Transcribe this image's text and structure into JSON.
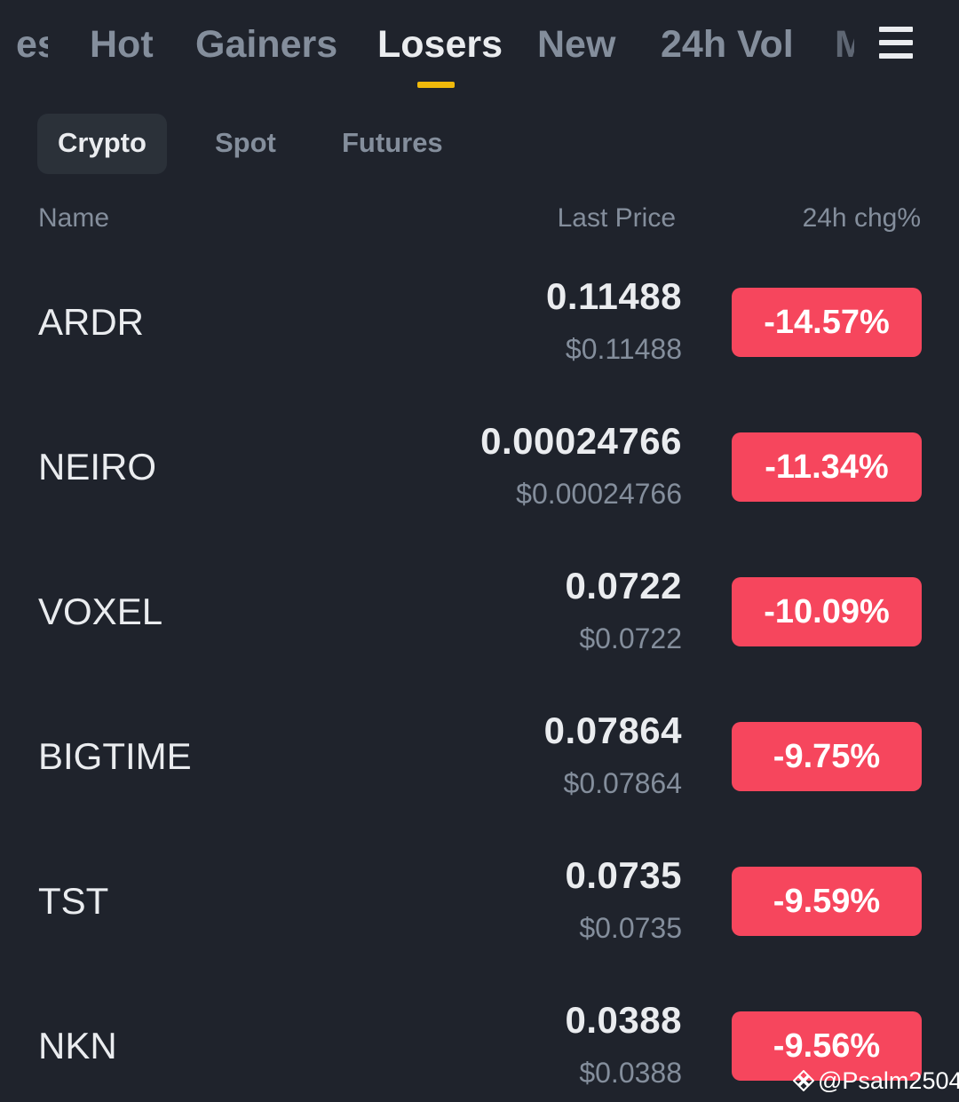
{
  "top_tabs": {
    "items": [
      {
        "label": "es"
      },
      {
        "label": "Hot"
      },
      {
        "label": "Gainers"
      },
      {
        "label": "Losers"
      },
      {
        "label": "New"
      },
      {
        "label": "24h Vol"
      },
      {
        "label": "M"
      }
    ],
    "active": "Losers"
  },
  "sub_tabs": {
    "items": [
      {
        "label": "Crypto"
      },
      {
        "label": "Spot"
      },
      {
        "label": "Futures"
      }
    ],
    "active": "Crypto"
  },
  "columns": {
    "name": "Name",
    "last_price": "Last Price",
    "change": "24h chg%"
  },
  "rows": [
    {
      "symbol": "ARDR",
      "price": "0.11488",
      "fiat": "$0.11488",
      "change": "-14.57%"
    },
    {
      "symbol": "NEIRO",
      "price": "0.00024766",
      "fiat": "$0.00024766",
      "change": "-11.34%"
    },
    {
      "symbol": "VOXEL",
      "price": "0.0722",
      "fiat": "$0.0722",
      "change": "-10.09%"
    },
    {
      "symbol": "BIGTIME",
      "price": "0.07864",
      "fiat": "$0.07864",
      "change": "-9.75%"
    },
    {
      "symbol": "TST",
      "price": "0.0735",
      "fiat": "$0.0735",
      "change": "-9.59%"
    },
    {
      "symbol": "NKN",
      "price": "0.0388",
      "fiat": "$0.0388",
      "change": "-9.56%"
    }
  ],
  "watermark": {
    "text": "@Psalm2504",
    "icon": "binance-diamond-icon"
  },
  "colors": {
    "background": "#1f232c",
    "accent": "#f0b90b",
    "negative": "#f6465d",
    "text_primary": "#eaecef",
    "text_secondary": "#848e9c"
  }
}
